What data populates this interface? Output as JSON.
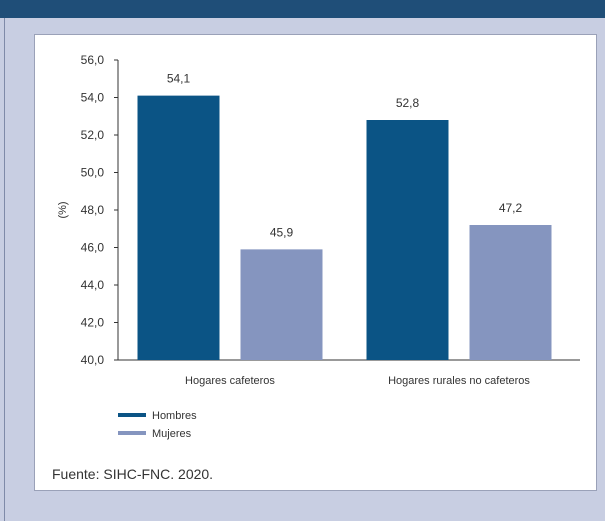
{
  "colors": {
    "hombres": "#0b5485",
    "mujeres": "#8595bf",
    "top_bar": "#1f4e78",
    "background": "#c8cee2"
  },
  "chart_data": {
    "type": "bar",
    "categories": [
      "Hogares cafeteros",
      "Hogares rurales no cafeteros"
    ],
    "series": [
      {
        "name": "Hombres",
        "values": [
          54.1,
          52.8
        ],
        "labels": [
          "54,1",
          "52,8"
        ]
      },
      {
        "name": "Mujeres",
        "values": [
          45.9,
          47.2
        ],
        "labels": [
          "45,9",
          "47,2"
        ]
      }
    ],
    "ylabel": "(%)",
    "ylim": [
      40,
      56
    ],
    "yticks": [
      40,
      42,
      44,
      46,
      48,
      50,
      52,
      54,
      56
    ],
    "ytick_labels": [
      "40,0",
      "42,0",
      "44,0",
      "46,0",
      "48,0",
      "50,0",
      "52,0",
      "54,0",
      "56,0"
    ],
    "grid": false,
    "legend_placement": "bottom-left"
  },
  "source": "Fuente: SIHC-FNC. 2020."
}
